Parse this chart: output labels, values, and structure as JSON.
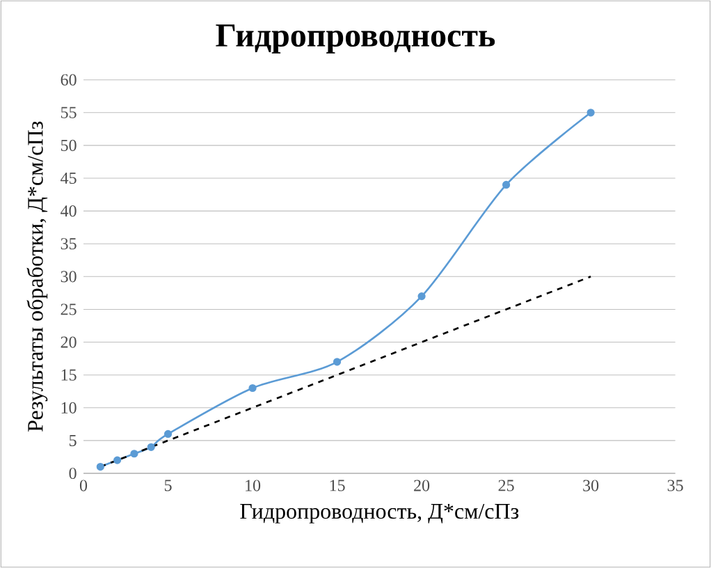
{
  "chart_data": {
    "type": "line",
    "title": "Гидропроводность",
    "xlabel": "Гидропроводность, Д*см/сПз",
    "ylabel": "Результаты обработки, Д*см/сПз",
    "series": [
      {
        "color": "#5b9bd5",
        "marker": "circle",
        "line_style": "solid",
        "x": [
          1,
          2,
          3,
          4,
          5,
          10,
          15,
          20,
          25,
          30
        ],
        "values": [
          1,
          2,
          3,
          4,
          6,
          13,
          17,
          27,
          44,
          55
        ]
      },
      {
        "color": "#000000",
        "marker": "none",
        "line_style": "dashed",
        "x": [
          1,
          30
        ],
        "values": [
          1,
          30
        ]
      }
    ],
    "xlim": [
      0,
      35
    ],
    "xticks": [
      0,
      5,
      10,
      15,
      20,
      25,
      30,
      35
    ],
    "ylim": [
      0,
      60
    ],
    "yticks": [
      0,
      5,
      10,
      15,
      20,
      25,
      30,
      35,
      40,
      45,
      50,
      55,
      60
    ],
    "grid": "y"
  }
}
